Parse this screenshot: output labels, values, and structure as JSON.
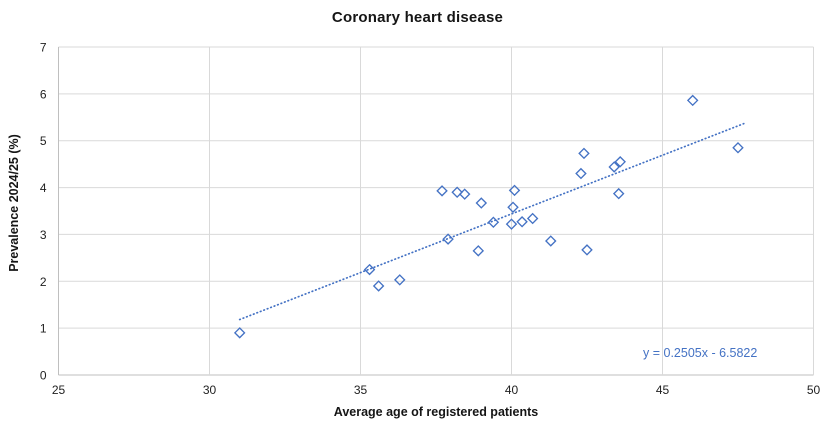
{
  "chart_data": {
    "type": "scatter",
    "title": "Coronary heart disease",
    "xlabel": "Average age of registered patients",
    "ylabel": "Prevalence 2024/25 (%)",
    "xlim": [
      25,
      50
    ],
    "ylim": [
      0,
      7
    ],
    "x_ticks": [
      25,
      30,
      35,
      40,
      45,
      50
    ],
    "y_ticks": [
      0,
      1,
      2,
      3,
      4,
      5,
      6,
      7
    ],
    "grid": true,
    "legend": "none",
    "marker_shape": "open-diamond",
    "points": [
      [
        31.0,
        0.9
      ],
      [
        35.3,
        2.25
      ],
      [
        35.6,
        1.9
      ],
      [
        36.3,
        2.03
      ],
      [
        37.7,
        3.93
      ],
      [
        37.9,
        2.9
      ],
      [
        38.2,
        3.9
      ],
      [
        38.45,
        3.86
      ],
      [
        38.9,
        2.65
      ],
      [
        39.0,
        3.67
      ],
      [
        39.4,
        3.26
      ],
      [
        40.0,
        3.22
      ],
      [
        40.05,
        3.58
      ],
      [
        40.1,
        3.94
      ],
      [
        40.35,
        3.27
      ],
      [
        40.7,
        3.34
      ],
      [
        41.3,
        2.86
      ],
      [
        42.3,
        4.3
      ],
      [
        42.4,
        4.73
      ],
      [
        42.5,
        2.67
      ],
      [
        43.4,
        4.44
      ],
      [
        43.6,
        4.55
      ],
      [
        43.55,
        3.87
      ],
      [
        46.0,
        5.86
      ],
      [
        47.5,
        4.85
      ]
    ],
    "trendline": {
      "equation_label": "y = 0.2505x - 6.5822",
      "slope": 0.2505,
      "intercept": -6.5822,
      "x_start": 31.0,
      "x_end": 47.7,
      "style": "dotted"
    },
    "colors": {
      "marker": "#4472C4",
      "trendline": "#4472C4",
      "equation_text": "#4472C4",
      "gridline": "#D9D9D9",
      "axis_line": "#BFBFBF",
      "tick_text": "#1f1f1f"
    }
  }
}
